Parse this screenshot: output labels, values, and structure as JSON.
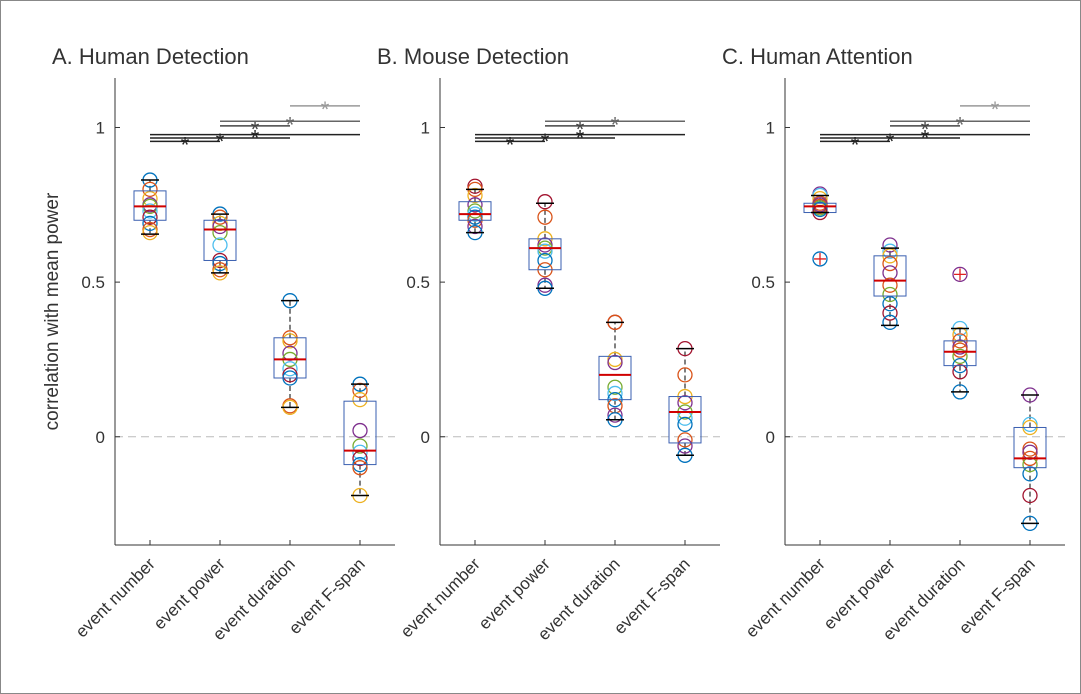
{
  "chart_data": [
    {
      "type": "box",
      "title": "A. Human Detection",
      "ylabel": "correlation with mean power",
      "categories": [
        "event number",
        "event power",
        "event duration",
        "event F-span"
      ],
      "boxes": [
        {
          "q1": 0.7,
          "median": 0.745,
          "q3": 0.795,
          "whislo": 0.655,
          "whishi": 0.83,
          "outliers": []
        },
        {
          "q1": 0.57,
          "median": 0.67,
          "q3": 0.7,
          "whislo": 0.53,
          "whishi": 0.72,
          "outliers": []
        },
        {
          "q1": 0.19,
          "median": 0.25,
          "q3": 0.32,
          "whislo": 0.095,
          "whishi": 0.44,
          "outliers": []
        },
        {
          "q1": -0.09,
          "median": -0.045,
          "q3": 0.115,
          "whislo": -0.19,
          "whishi": 0.17,
          "outliers": []
        }
      ],
      "points": [
        [
          0.83,
          0.8,
          0.77,
          0.75,
          0.745,
          0.73,
          0.71,
          0.69,
          0.67,
          0.66
        ],
        [
          0.72,
          0.71,
          0.69,
          0.68,
          0.66,
          0.62,
          0.57,
          0.56,
          0.54,
          0.53
        ],
        [
          0.44,
          0.32,
          0.31,
          0.27,
          0.25,
          0.22,
          0.2,
          0.19,
          0.1,
          0.095
        ],
        [
          0.17,
          0.15,
          0.12,
          0.02,
          -0.03,
          -0.05,
          -0.07,
          -0.09,
          -0.1,
          -0.19
        ]
      ],
      "point_colors": [
        "#0072bd",
        "#d95319",
        "#edb120",
        "#7e2f8e",
        "#77ac30",
        "#4dbeee",
        "#a2142f",
        "#0072bd",
        "#d95319",
        "#edb120"
      ],
      "box_color": "#3a5fb0",
      "median_color": "#d00000",
      "outlier_color": "#e02020",
      "ylim": [
        -0.35,
        1.16
      ],
      "yticks": [
        0,
        0.5,
        1
      ],
      "zero_line": true,
      "significance": [
        {
          "pair": [
            0,
            1
          ],
          "value": 0.955,
          "color": "#222222",
          "label": "*"
        },
        {
          "pair": [
            0,
            2
          ],
          "value": 0.966,
          "color": "#222222",
          "label": "*"
        },
        {
          "pair": [
            0,
            3
          ],
          "value": 0.977,
          "color": "#222222",
          "label": "*"
        },
        {
          "pair": [
            1,
            2
          ],
          "value": 1.005,
          "color": "#444444",
          "label": "*"
        },
        {
          "pair": [
            1,
            3
          ],
          "value": 1.02,
          "color": "#666666",
          "label": "*"
        },
        {
          "pair": [
            2,
            3
          ],
          "value": 1.07,
          "color": "#999999",
          "label": "*"
        }
      ]
    },
    {
      "type": "box",
      "title": "B. Mouse Detection",
      "categories": [
        "event number",
        "event power",
        "event duration",
        "event F-span"
      ],
      "boxes": [
        {
          "q1": 0.7,
          "median": 0.72,
          "q3": 0.76,
          "whislo": 0.66,
          "whishi": 0.8,
          "outliers": []
        },
        {
          "q1": 0.54,
          "median": 0.61,
          "q3": 0.64,
          "whislo": 0.48,
          "whishi": 0.755,
          "outliers": []
        },
        {
          "q1": 0.12,
          "median": 0.2,
          "q3": 0.26,
          "whislo": 0.055,
          "whishi": 0.37,
          "outliers": []
        },
        {
          "q1": -0.02,
          "median": 0.08,
          "q3": 0.13,
          "whislo": -0.06,
          "whishi": 0.285,
          "outliers": []
        }
      ],
      "points": [
        [
          0.81,
          0.8,
          0.78,
          0.75,
          0.73,
          0.72,
          0.71,
          0.7,
          0.68,
          0.66
        ],
        [
          0.76,
          0.71,
          0.64,
          0.62,
          0.61,
          0.6,
          0.57,
          0.54,
          0.49,
          0.48
        ],
        [
          0.37,
          0.37,
          0.25,
          0.24,
          0.16,
          0.14,
          0.12,
          0.1,
          0.07,
          0.055
        ],
        [
          0.285,
          0.2,
          0.13,
          0.11,
          0.08,
          0.06,
          0.04,
          -0.01,
          -0.03,
          -0.06
        ]
      ],
      "point_colors": [
        "#a2142f",
        "#d95319",
        "#edb120",
        "#7e2f8e",
        "#77ac30",
        "#4dbeee",
        "#0072bd",
        "#d95319",
        "#7e2f8e",
        "#0072bd"
      ],
      "box_color": "#3a5fb0",
      "median_color": "#d00000",
      "outlier_color": "#e02020",
      "ylim": [
        -0.35,
        1.16
      ],
      "yticks": [
        0,
        0.5,
        1
      ],
      "zero_line": true,
      "significance": [
        {
          "pair": [
            0,
            1
          ],
          "value": 0.955,
          "color": "#222222",
          "label": "*"
        },
        {
          "pair": [
            0,
            2
          ],
          "value": 0.966,
          "color": "#222222",
          "label": "*"
        },
        {
          "pair": [
            0,
            3
          ],
          "value": 0.977,
          "color": "#222222",
          "label": "*"
        },
        {
          "pair": [
            1,
            2
          ],
          "value": 1.005,
          "color": "#444444",
          "label": "*"
        },
        {
          "pair": [
            1,
            3
          ],
          "value": 1.02,
          "color": "#666666",
          "label": "*"
        }
      ]
    },
    {
      "type": "box",
      "title": "C. Human Attention",
      "categories": [
        "event number",
        "event power",
        "event duration",
        "event F-span"
      ],
      "boxes": [
        {
          "q1": 0.725,
          "median": 0.745,
          "q3": 0.755,
          "whislo": 0.725,
          "whishi": 0.78,
          "outliers": [
            0.575
          ]
        },
        {
          "q1": 0.455,
          "median": 0.505,
          "q3": 0.585,
          "whislo": 0.36,
          "whishi": 0.61,
          "outliers": []
        },
        {
          "q1": 0.23,
          "median": 0.275,
          "q3": 0.31,
          "whislo": 0.145,
          "whishi": 0.35,
          "outliers": [
            0.525
          ]
        },
        {
          "q1": -0.1,
          "median": -0.07,
          "q3": 0.03,
          "whislo": -0.28,
          "whishi": 0.135,
          "outliers": []
        }
      ],
      "points": [
        [
          0.785,
          0.78,
          0.77,
          0.755,
          0.75,
          0.745,
          0.74,
          0.735,
          0.725,
          0.575
        ],
        [
          0.62,
          0.6,
          0.585,
          0.56,
          0.53,
          0.49,
          0.46,
          0.43,
          0.4,
          0.37
        ],
        [
          0.525,
          0.35,
          0.33,
          0.31,
          0.29,
          0.28,
          0.26,
          0.23,
          0.21,
          0.145
        ],
        [
          0.135,
          0.04,
          0.03,
          -0.04,
          -0.05,
          -0.07,
          -0.09,
          -0.12,
          -0.19,
          -0.28
        ]
      ],
      "point_colors": [
        "#7e2f8e",
        "#4dbeee",
        "#edb120",
        "#d95319",
        "#7e2f8e",
        "#d95319",
        "#77ac30",
        "#0072bd",
        "#a2142f",
        "#0072bd"
      ],
      "box_color": "#3a5fb0",
      "median_color": "#d00000",
      "outlier_color": "#e02020",
      "ylim": [
        -0.35,
        1.16
      ],
      "yticks": [
        0,
        0.5,
        1
      ],
      "zero_line": true,
      "significance": [
        {
          "pair": [
            0,
            1
          ],
          "value": 0.955,
          "color": "#222222",
          "label": "*"
        },
        {
          "pair": [
            0,
            2
          ],
          "value": 0.966,
          "color": "#222222",
          "label": "*"
        },
        {
          "pair": [
            0,
            3
          ],
          "value": 0.977,
          "color": "#222222",
          "label": "*"
        },
        {
          "pair": [
            1,
            2
          ],
          "value": 1.005,
          "color": "#444444",
          "label": "*"
        },
        {
          "pair": [
            1,
            3
          ],
          "value": 1.02,
          "color": "#666666",
          "label": "*"
        },
        {
          "pair": [
            2,
            3
          ],
          "value": 1.07,
          "color": "#999999",
          "label": "*"
        }
      ]
    }
  ]
}
